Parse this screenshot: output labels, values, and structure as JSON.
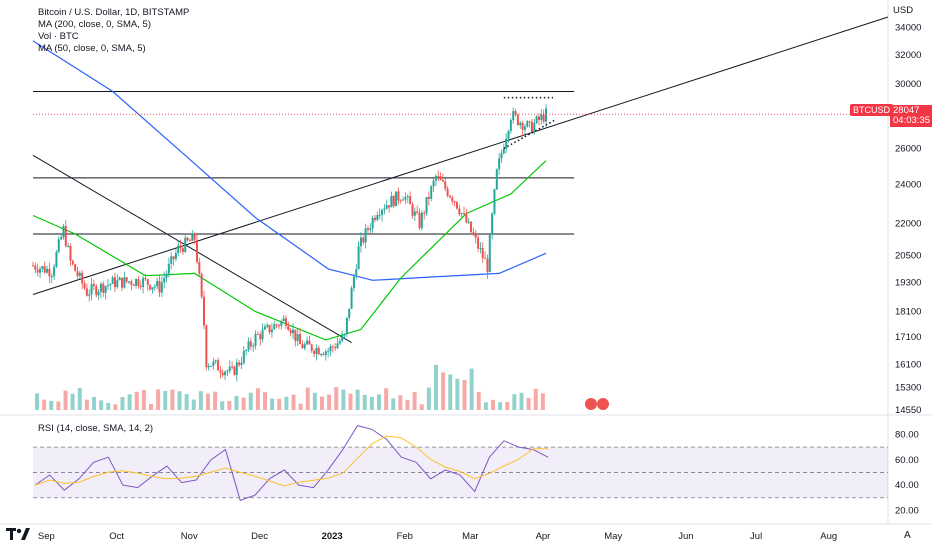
{
  "legend": {
    "title": "Bitcoin / U.S. Dollar, 1D, BITSTAMP",
    "ma200": "MA (200, close, 0, SMA, 5)",
    "vol": "Vol · BTC",
    "ma50": "MA (50, close, 0, SMA, 5)"
  },
  "rsi_legend": "RSI (14, close, SMA, 14, 2)",
  "price_axis_unit": "USD",
  "symbol_tag": "BTCUSD",
  "last_price": "28047",
  "countdown": "04:03:35",
  "corner_icon": "tradingview-logo-icon",
  "corner_letter": "A",
  "colors": {
    "up": "#26a69a",
    "down": "#ef5350",
    "ma200": "#2962ff",
    "ma50": "#00c805",
    "rsi": "#7e57c2",
    "rsi_ma": "#fbc02d",
    "price_line": "#f23645"
  },
  "chart_data": [
    {
      "type": "candlestick",
      "title": "Bitcoin / U.S. Dollar, 1D, BITSTAMP",
      "x_ticks": [
        "Sep",
        "Oct",
        "Nov",
        "Dec",
        "2023",
        "Feb",
        "Mar",
        "Apr",
        "May",
        "Jun",
        "Jul",
        "Aug"
      ],
      "y_ticks": [
        34000,
        32000,
        30000,
        28047,
        26000,
        24000,
        22000,
        20500,
        19300,
        18100,
        17100,
        16100,
        15300,
        14550
      ],
      "y_scale": "log",
      "ylim": [
        14550,
        35500
      ],
      "close_path": [
        {
          "date": "2022-08-28",
          "close": 20050
        },
        {
          "date": "2022-09-05",
          "close": 19800
        },
        {
          "date": "2022-09-10",
          "close": 21700
        },
        {
          "date": "2022-09-13",
          "close": 20200
        },
        {
          "date": "2022-09-20",
          "close": 18900
        },
        {
          "date": "2022-10-01",
          "close": 19300
        },
        {
          "date": "2022-10-13",
          "close": 19400
        },
        {
          "date": "2022-10-21",
          "close": 19100
        },
        {
          "date": "2022-10-29",
          "close": 20800
        },
        {
          "date": "2022-11-05",
          "close": 21300
        },
        {
          "date": "2022-11-09",
          "close": 17600
        },
        {
          "date": "2022-11-10",
          "close": 16200
        },
        {
          "date": "2022-11-21",
          "close": 15800
        },
        {
          "date": "2022-12-01",
          "close": 17100
        },
        {
          "date": "2022-12-14",
          "close": 17800
        },
        {
          "date": "2022-12-20",
          "close": 16800
        },
        {
          "date": "2023-01-01",
          "close": 16600
        },
        {
          "date": "2023-01-08",
          "close": 17100
        },
        {
          "date": "2023-01-14",
          "close": 20800
        },
        {
          "date": "2023-01-22",
          "close": 22700
        },
        {
          "date": "2023-02-02",
          "close": 23500
        },
        {
          "date": "2023-02-09",
          "close": 22000
        },
        {
          "date": "2023-02-16",
          "close": 24400
        },
        {
          "date": "2023-02-24",
          "close": 23200
        },
        {
          "date": "2023-03-10",
          "close": 20000
        },
        {
          "date": "2023-03-14",
          "close": 24600
        },
        {
          "date": "2023-03-20",
          "close": 28000
        },
        {
          "date": "2023-03-28",
          "close": 27200
        },
        {
          "date": "2023-04-04",
          "close": 28047
        }
      ],
      "ma200_path": [
        {
          "date": "2022-08-28",
          "value": 33000
        },
        {
          "date": "2022-10-01",
          "value": 29500
        },
        {
          "date": "2022-11-01",
          "value": 25600
        },
        {
          "date": "2022-12-01",
          "value": 22300
        },
        {
          "date": "2023-01-01",
          "value": 19900
        },
        {
          "date": "2023-01-20",
          "value": 19400
        },
        {
          "date": "2023-02-15",
          "value": 19550
        },
        {
          "date": "2023-03-15",
          "value": 19700
        },
        {
          "date": "2023-04-04",
          "value": 20600
        }
      ],
      "ma50_path": [
        {
          "date": "2022-08-28",
          "value": 22400
        },
        {
          "date": "2022-09-15",
          "value": 21500
        },
        {
          "date": "2022-10-15",
          "value": 19600
        },
        {
          "date": "2022-11-05",
          "value": 19700
        },
        {
          "date": "2022-12-01",
          "value": 18100
        },
        {
          "date": "2022-12-31",
          "value": 17000
        },
        {
          "date": "2023-01-15",
          "value": 17400
        },
        {
          "date": "2023-02-01",
          "value": 19500
        },
        {
          "date": "2023-03-01",
          "value": 22500
        },
        {
          "date": "2023-03-20",
          "value": 23500
        },
        {
          "date": "2023-04-04",
          "value": 25300
        }
      ],
      "volume_bars": 72,
      "horizontal_levels": [
        29500,
        24350,
        21500
      ],
      "rising_trendline": [
        {
          "date": "2022-08-28",
          "price": 18800
        },
        {
          "date": "2023-08-28",
          "price": 34800
        }
      ],
      "falling_trendline": [
        {
          "date": "2022-08-28",
          "price": 25600
        },
        {
          "date": "2023-01-11",
          "price": 16900
        }
      ]
    },
    {
      "type": "line",
      "title": "RSI (14, close, SMA, 14, 2)",
      "y_ticks": [
        80,
        60,
        40,
        20
      ],
      "ylim": [
        14,
        93
      ],
      "bands": [
        70,
        50,
        30
      ],
      "series": [
        {
          "values": [
            40,
            48,
            36,
            45,
            58,
            62,
            40,
            38,
            47,
            55,
            42,
            44,
            60,
            68,
            28,
            32,
            45,
            52,
            40,
            38,
            52,
            68,
            87,
            84,
            76,
            62,
            58,
            45,
            52,
            48,
            35,
            62,
            75,
            70,
            68,
            62
          ]
        }
      ]
    }
  ]
}
